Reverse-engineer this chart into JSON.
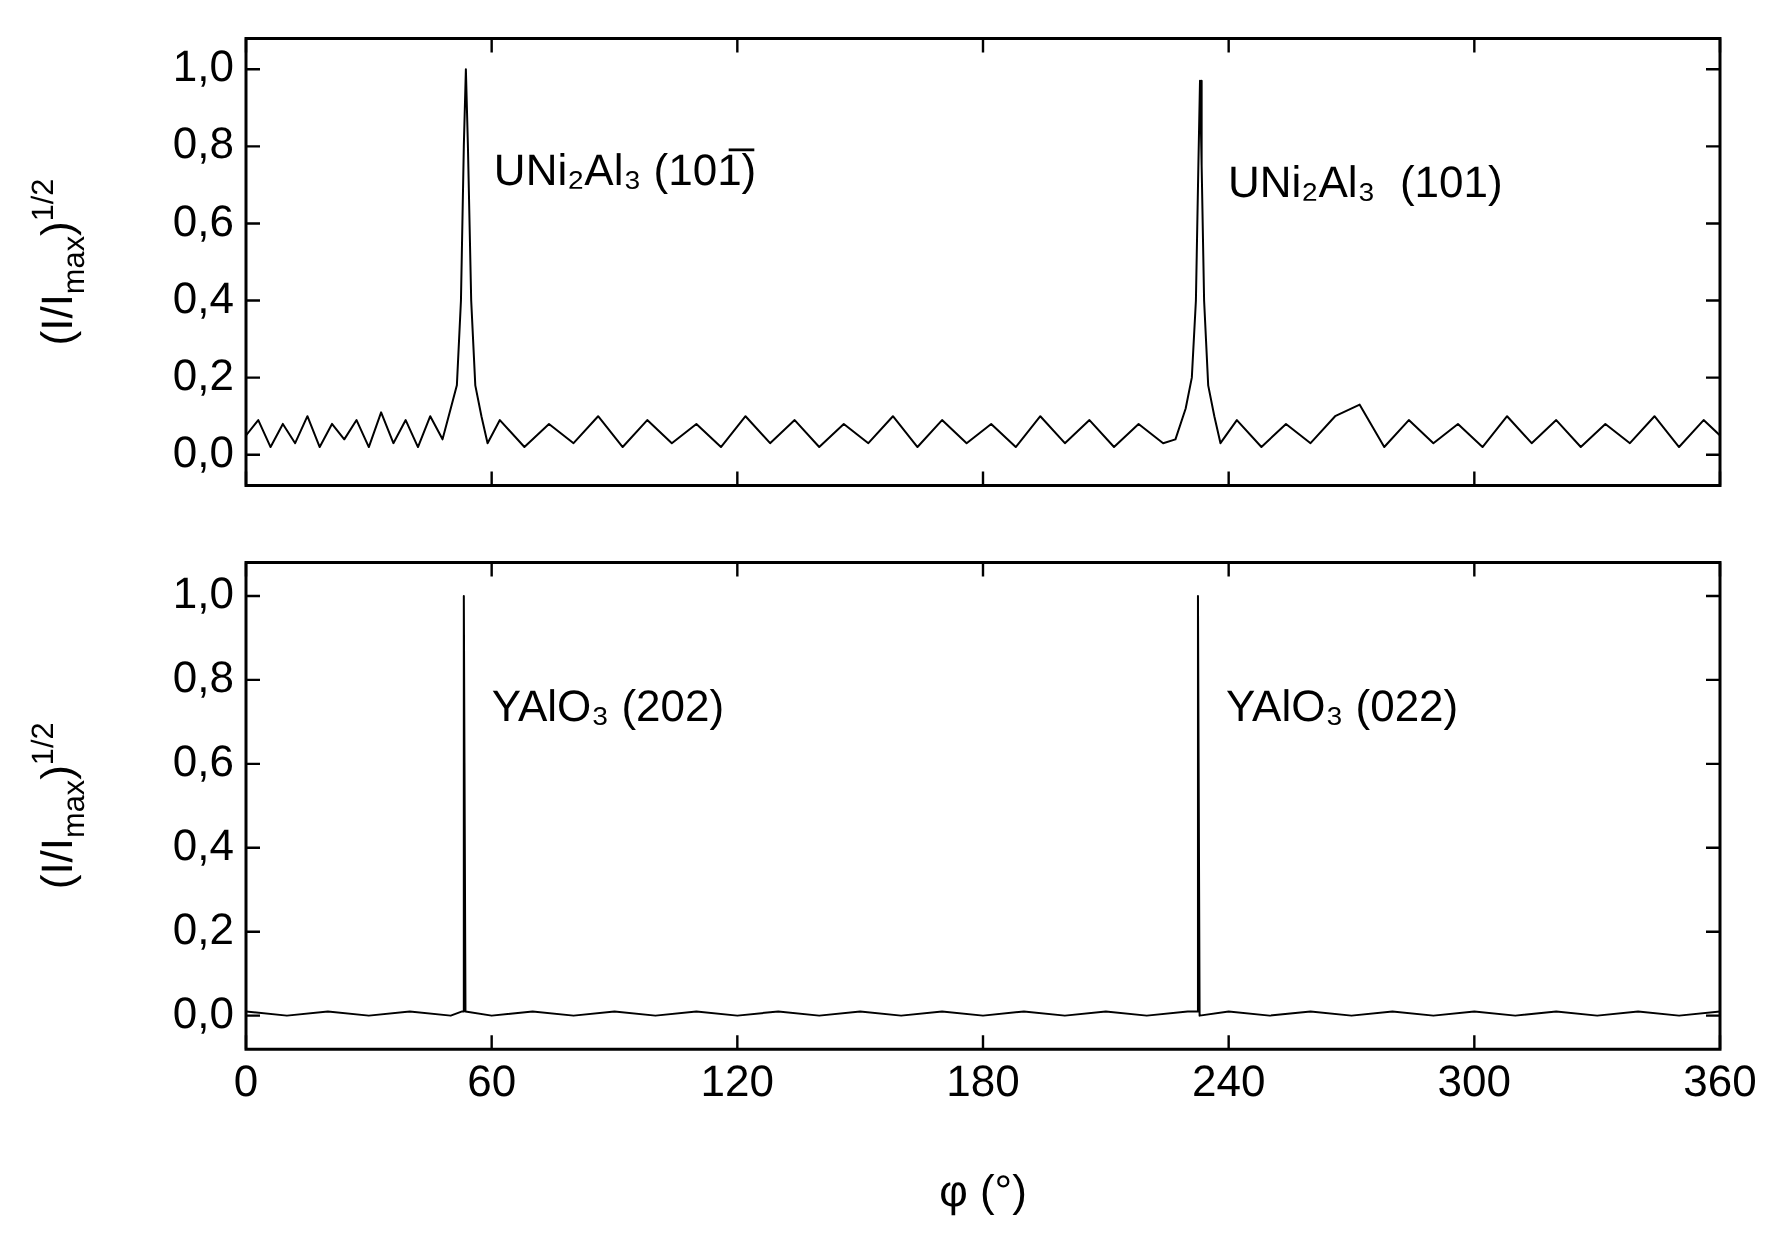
{
  "chart_data": [
    {
      "type": "line",
      "ylabel": "(I/I$_{max}$)$^{1/2}$",
      "xlim": [
        0,
        360
      ],
      "xticks": [
        0,
        60,
        120,
        180,
        240,
        300,
        360
      ],
      "ylim": [
        -0.08,
        1.08
      ],
      "yticks": [
        {
          "value": 0,
          "label": "0,0"
        },
        {
          "value": 0.2,
          "label": "0,2"
        },
        {
          "value": 0.4,
          "label": "0,4"
        },
        {
          "value": 0.6,
          "label": "0,6"
        },
        {
          "value": 0.8,
          "label": "0,8"
        },
        {
          "value": 1,
          "label": "1,0"
        }
      ],
      "tick_labels": "y",
      "grid": false,
      "legend": false,
      "marker": "none",
      "line_style": "solid",
      "annotations": [
        {
          "text": "UNi₂Al₃ (101̅)",
          "x": 53.7,
          "y": 1.0
        },
        {
          "text": "UNi₂Al₃  (101)",
          "x": 233,
          "y": 0.97
        }
      ],
      "series": [
        {
          "color": "#000000",
          "x": [
            0,
            3,
            6,
            9,
            12,
            15,
            18,
            21,
            24,
            27,
            30,
            33,
            36,
            39,
            42,
            45,
            48,
            50,
            51.5,
            52.5,
            53.2,
            53.7,
            54.2,
            55,
            56,
            57.5,
            59,
            62,
            68,
            74,
            80,
            86,
            92,
            98,
            104,
            110,
            116,
            122,
            128,
            134,
            140,
            146,
            152,
            158,
            164,
            170,
            176,
            182,
            188,
            194,
            200,
            206,
            212,
            218,
            224,
            227,
            229.5,
            231,
            232,
            232.6,
            233,
            233.4,
            234,
            235,
            236.5,
            238,
            242,
            248,
            254,
            260,
            266,
            272,
            278,
            284,
            290,
            296,
            302,
            308,
            314,
            320,
            326,
            332,
            338,
            344,
            350,
            356,
            360
          ],
          "values": [
            0.05,
            0.09,
            0.02,
            0.08,
            0.03,
            0.1,
            0.02,
            0.08,
            0.04,
            0.09,
            0.02,
            0.11,
            0.03,
            0.09,
            0.02,
            0.1,
            0.04,
            0.12,
            0.18,
            0.4,
            0.8,
            1.0,
            0.8,
            0.4,
            0.18,
            0.1,
            0.03,
            0.09,
            0.02,
            0.08,
            0.03,
            0.1,
            0.02,
            0.09,
            0.03,
            0.08,
            0.02,
            0.1,
            0.03,
            0.09,
            0.02,
            0.08,
            0.03,
            0.1,
            0.02,
            0.09,
            0.03,
            0.08,
            0.02,
            0.1,
            0.03,
            0.09,
            0.02,
            0.08,
            0.03,
            0.04,
            0.12,
            0.2,
            0.4,
            0.75,
            0.97,
            0.75,
            0.4,
            0.18,
            0.1,
            0.03,
            0.09,
            0.02,
            0.08,
            0.03,
            0.1,
            0.13,
            0.02,
            0.09,
            0.03,
            0.08,
            0.02,
            0.1,
            0.03,
            0.09,
            0.02,
            0.08,
            0.03,
            0.1,
            0.02,
            0.09,
            0.05
          ]
        }
      ]
    },
    {
      "type": "line",
      "ylabel": "(I/I$_{max}$)$^{1/2}$",
      "xlabel": "φ (°)",
      "xlim": [
        0,
        360
      ],
      "xticks": [
        0,
        60,
        120,
        180,
        240,
        300,
        360
      ],
      "ylim": [
        -0.08,
        1.08
      ],
      "yticks": [
        {
          "value": 0,
          "label": "0,0"
        },
        {
          "value": 0.2,
          "label": "0,2"
        },
        {
          "value": 0.4,
          "label": "0,4"
        },
        {
          "value": 0.6,
          "label": "0,6"
        },
        {
          "value": 0.8,
          "label": "0,8"
        },
        {
          "value": 1,
          "label": "1,0"
        }
      ],
      "grid": false,
      "legend": false,
      "marker": "none",
      "line_style": "solid",
      "annotations": [
        {
          "text": "YAlO₃ (202)",
          "x": 53.2,
          "y": 1.0
        },
        {
          "text": "YAlO₃ (022)",
          "x": 232.5,
          "y": 1.0
        }
      ],
      "series": [
        {
          "color": "#000000",
          "x": [
            0,
            10,
            20,
            30,
            40,
            50,
            52.8,
            53.2,
            53.6,
            60,
            70,
            80,
            90,
            100,
            110,
            120,
            130,
            140,
            150,
            160,
            170,
            180,
            190,
            200,
            210,
            220,
            230,
            232.1,
            232.5,
            232.9,
            240,
            250,
            260,
            270,
            280,
            290,
            300,
            310,
            320,
            330,
            340,
            350,
            360
          ],
          "values": [
            0.01,
            0.0,
            0.01,
            0.0,
            0.01,
            0.0,
            0.01,
            1.0,
            0.01,
            0.0,
            0.01,
            0.0,
            0.01,
            0.0,
            0.01,
            0.0,
            0.01,
            0.0,
            0.01,
            0.0,
            0.01,
            0.0,
            0.01,
            0.0,
            0.01,
            0.0,
            0.01,
            0.01,
            1.0,
            0.0,
            0.01,
            0.0,
            0.01,
            0.0,
            0.01,
            0.0,
            0.01,
            0.0,
            0.01,
            0.0,
            0.01,
            0.0,
            0.01
          ]
        }
      ]
    }
  ]
}
